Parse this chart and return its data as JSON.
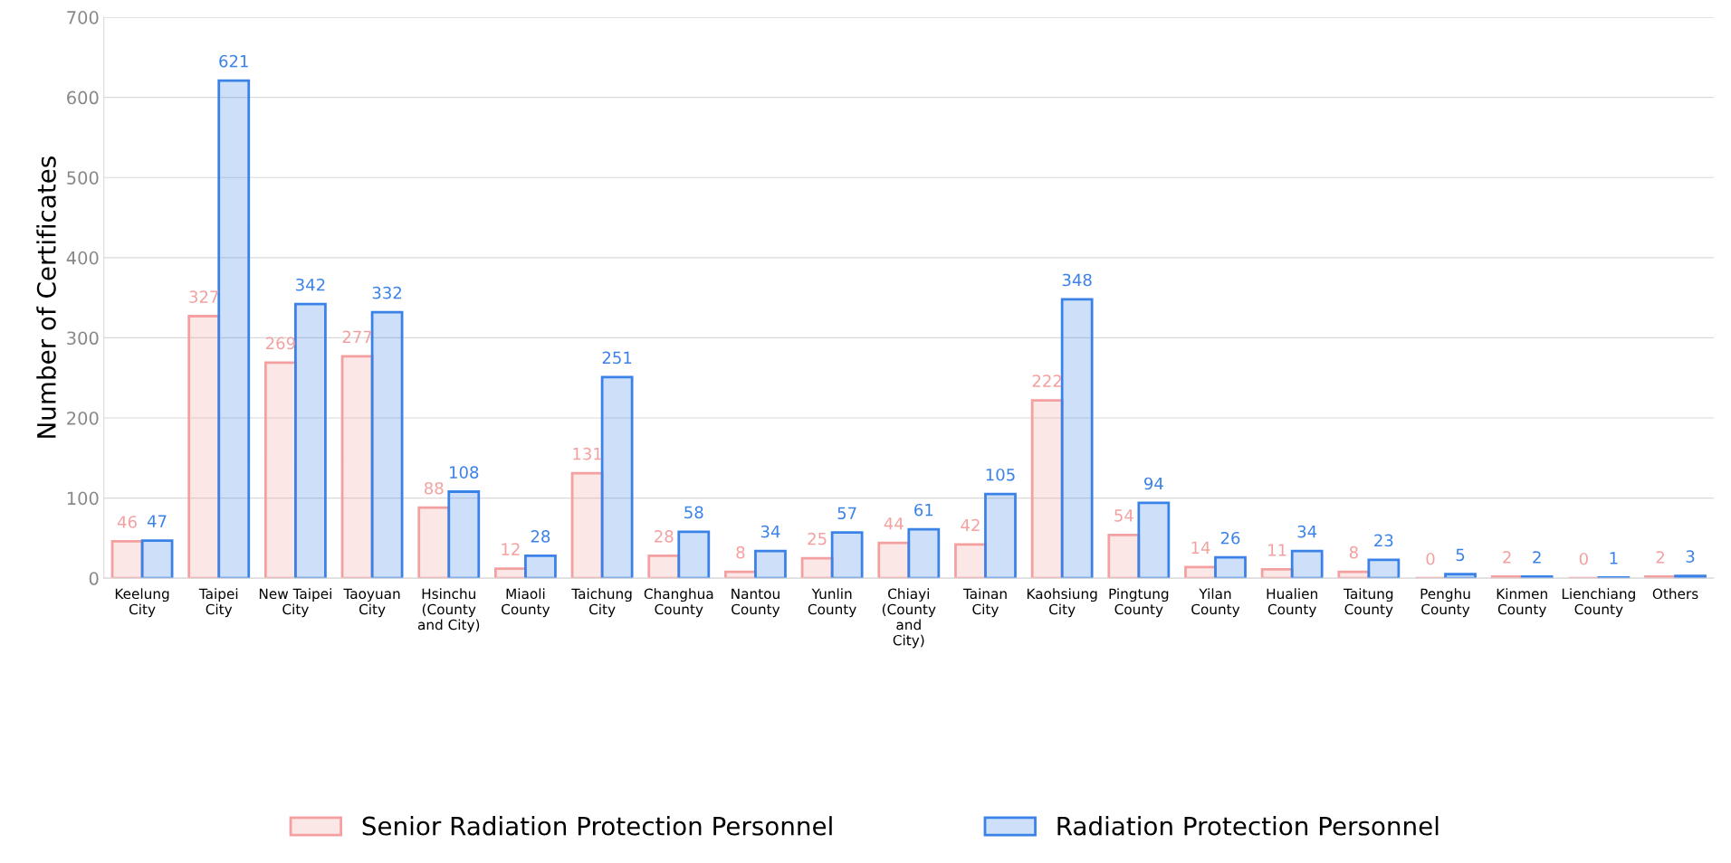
{
  "chart_data": {
    "type": "bar",
    "ylabel": "Number of Certificates",
    "categories": [
      "Keelung\nCity",
      "Taipei\nCity",
      "New Taipei\nCity",
      "Taoyuan\nCity",
      "Hsinchu\n(County\nand City)",
      "Miaoli\nCounty",
      "Taichung\nCity",
      "Changhua\nCounty",
      "Nantou\nCounty",
      "Yunlin\nCounty",
      "Chiayi\n(County\nand\nCity)",
      "Tainan\nCity",
      "Kaohsiung\nCity",
      "Pingtung\nCounty",
      "Yilan\nCounty",
      "Hualien\nCounty",
      "Taitung\nCounty",
      "Penghu\nCounty",
      "Kinmen\nCounty",
      "Lienchiang\nCounty",
      "Others"
    ],
    "series": [
      {
        "name": "Senior Radiation Protection Personnel",
        "color": "#f4a0a0",
        "values": [
          46,
          327,
          269,
          277,
          88,
          12,
          131,
          28,
          8,
          25,
          44,
          42,
          222,
          54,
          14,
          11,
          8,
          0,
          2,
          0,
          2
        ]
      },
      {
        "name": "Radiation Protection Personnel",
        "color": "#3b82e8",
        "values": [
          47,
          621,
          342,
          332,
          108,
          28,
          251,
          58,
          34,
          57,
          61,
          105,
          348,
          94,
          26,
          34,
          23,
          5,
          2,
          1,
          3
        ]
      }
    ],
    "ylim": [
      0,
      700
    ],
    "yticks": [
      0,
      100,
      200,
      300,
      400,
      500,
      600,
      700
    ],
    "grid": "y",
    "legend": "bottom",
    "data_labels": true
  }
}
